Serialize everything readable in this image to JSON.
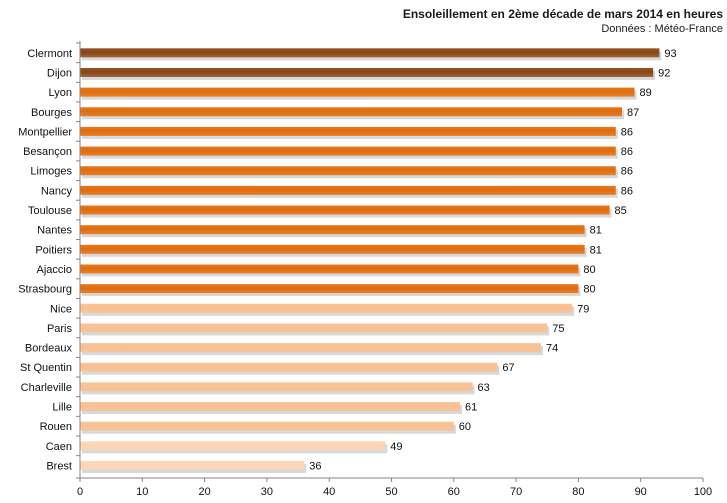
{
  "chart_data": {
    "type": "bar",
    "orientation": "horizontal",
    "title": "Ensoleillement  en 2ème décade de mars 2014 en heures",
    "subtitle": "Données : Météo-France",
    "categories": [
      "Clermont",
      "Dijon",
      "Lyon",
      "Bourges",
      "Montpellier",
      "Besançon",
      "Limoges",
      "Nancy",
      "Toulouse",
      "Nantes",
      "Poitiers",
      "Ajaccio",
      "Strasbourg",
      "Nice",
      "Paris",
      "Bordeaux",
      "St Quentin",
      "Charleville",
      "Lille",
      "Rouen",
      "Caen",
      "Brest"
    ],
    "values": [
      93,
      92,
      89,
      87,
      86,
      86,
      86,
      86,
      85,
      81,
      81,
      80,
      80,
      79,
      75,
      74,
      67,
      63,
      61,
      60,
      49,
      36
    ],
    "value_labels": [
      "93",
      "92",
      "89",
      "87",
      "86",
      "86",
      "86",
      "86",
      "85",
      "81",
      "81",
      "80",
      "80",
      "79",
      "75",
      "74",
      "67",
      "63",
      "61",
      "60",
      "49",
      "36"
    ],
    "xlim": [
      0,
      100
    ],
    "xticks": [
      0,
      10,
      20,
      30,
      40,
      50,
      60,
      70,
      80,
      90,
      100
    ],
    "xtick_labels": [
      "0",
      "10",
      "20",
      "30",
      "40",
      "50",
      "60",
      "70",
      "80",
      "90",
      "100"
    ],
    "grid": false,
    "colors": {
      "top": "#8B4513",
      "high": "#E36C0A",
      "medium": "#FAC090",
      "low": "#FCD5B4",
      "axis": "#868686"
    },
    "color_groups": [
      "top",
      "top",
      "high",
      "high",
      "high",
      "high",
      "high",
      "high",
      "high",
      "high",
      "high",
      "high",
      "high",
      "medium",
      "medium",
      "medium",
      "medium",
      "medium",
      "medium",
      "medium",
      "low",
      "low"
    ]
  }
}
